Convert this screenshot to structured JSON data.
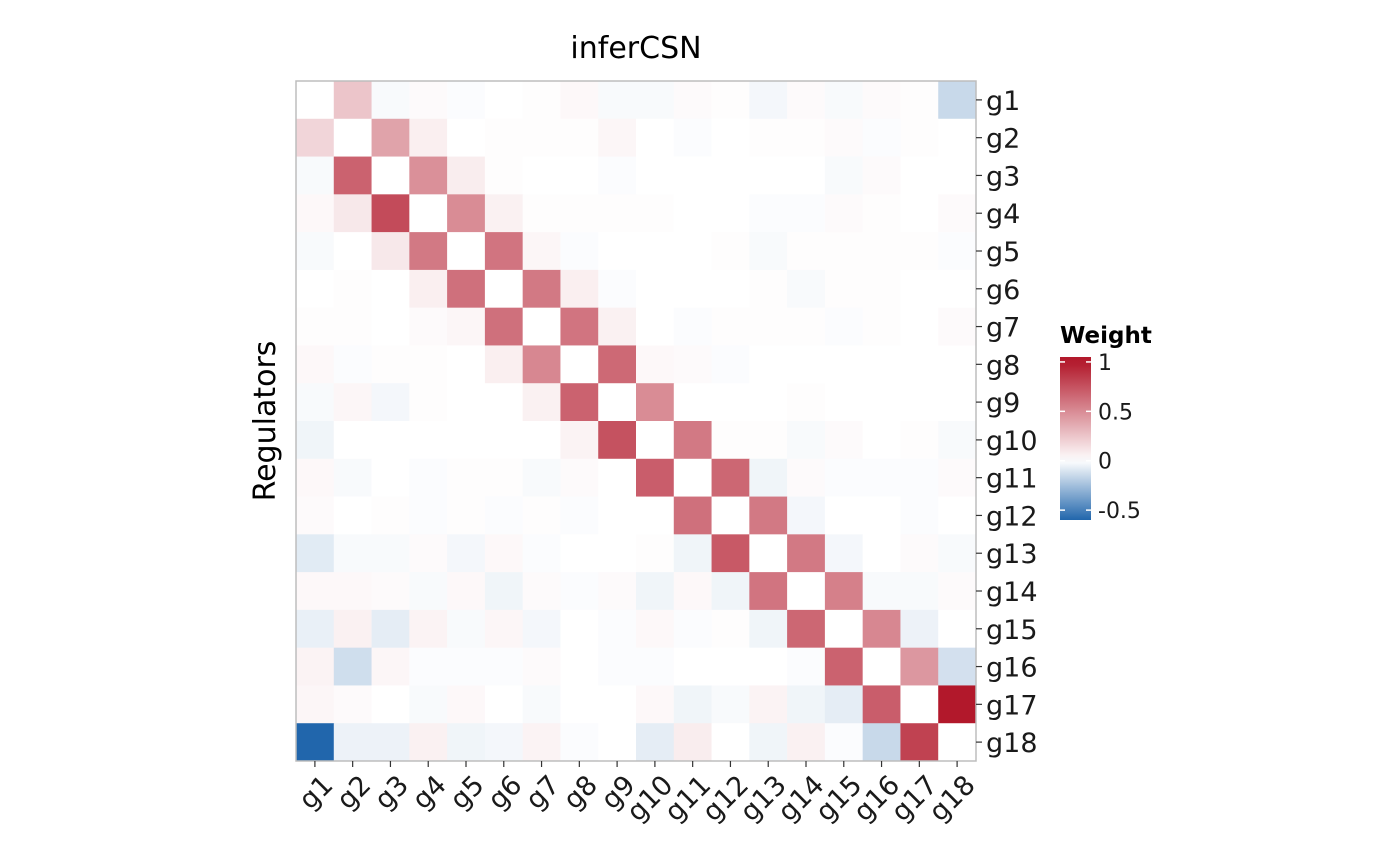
{
  "chart_data": {
    "type": "heatmap",
    "title": "inferCSN",
    "ylabel": "Regulators",
    "xlabel": "",
    "x_labels": [
      "g1",
      "g2",
      "g3",
      "g4",
      "g5",
      "g6",
      "g7",
      "g8",
      "g9",
      "g10",
      "g11",
      "g12",
      "g13",
      "g14",
      "g15",
      "g16",
      "g17",
      "g18"
    ],
    "y_labels": [
      "g1",
      "g2",
      "g3",
      "g4",
      "g5",
      "g6",
      "g7",
      "g8",
      "g9",
      "g10",
      "g11",
      "g12",
      "g13",
      "g14",
      "g15",
      "g16",
      "g17",
      "g18"
    ],
    "legend": {
      "title": "Weight",
      "ticks": [
        1,
        0.5,
        0,
        -0.5
      ],
      "tick_labels": [
        "1",
        "0.5",
        "0",
        "-0.5"
      ],
      "range": [
        -0.6,
        1.05
      ],
      "placement": "right"
    },
    "colors": {
      "high": "#b2182b",
      "mid": "#ffffff",
      "low": "#2166ac",
      "panel_border": "#bdbdbd"
    },
    "values": [
      [
        0,
        0.25,
        -0.02,
        0.02,
        -0.01,
        0,
        0.01,
        0.03,
        -0.02,
        -0.02,
        0.02,
        0.01,
        -0.03,
        0.02,
        -0.02,
        0.02,
        0.01,
        -0.15
      ],
      [
        0.18,
        0,
        0.4,
        0.07,
        0,
        0.01,
        0.01,
        0.01,
        0.04,
        0,
        -0.01,
        0,
        0.01,
        0.01,
        0.02,
        -0.01,
        0.01,
        0
      ],
      [
        -0.02,
        0.68,
        0,
        0.48,
        0.08,
        0.01,
        0,
        0,
        -0.01,
        0,
        0,
        0,
        0,
        0,
        -0.02,
        0.02,
        0,
        0
      ],
      [
        0.03,
        0.1,
        0.78,
        0,
        0.5,
        0.06,
        0.01,
        0.01,
        0.01,
        0.01,
        0,
        0,
        -0.01,
        -0.01,
        0.02,
        0.01,
        0,
        0.02
      ],
      [
        -0.02,
        0,
        0.1,
        0.58,
        0,
        0.6,
        0.04,
        -0.01,
        0,
        0,
        0,
        0.01,
        -0.02,
        0.01,
        0.01,
        0.01,
        0.01,
        -0.01
      ],
      [
        0,
        0.01,
        0,
        0.07,
        0.62,
        0,
        0.58,
        0.07,
        -0.01,
        0,
        0,
        0,
        0.01,
        -0.02,
        0.01,
        0.01,
        0,
        0
      ],
      [
        0.01,
        0.01,
        0,
        0.02,
        0.04,
        0.62,
        0,
        0.6,
        0.06,
        0,
        -0.01,
        0.01,
        0.01,
        0.01,
        -0.01,
        0.01,
        0,
        0.02
      ],
      [
        0.03,
        -0.01,
        0.01,
        0.01,
        0,
        0.07,
        0.52,
        0,
        0.65,
        0.03,
        0.02,
        -0.01,
        0,
        0,
        0,
        0,
        0,
        0
      ],
      [
        -0.02,
        0.04,
        -0.03,
        0.01,
        0,
        0,
        0.06,
        0.68,
        0,
        0.5,
        0,
        0,
        0,
        0.01,
        0,
        0,
        0,
        0
      ],
      [
        -0.04,
        0,
        0,
        0,
        0,
        0,
        0,
        0.05,
        0.75,
        0,
        0.58,
        0.01,
        0.01,
        -0.02,
        0.02,
        0,
        0.01,
        -0.02
      ],
      [
        0.03,
        -0.02,
        0,
        -0.01,
        0.01,
        0.01,
        -0.02,
        0.02,
        0,
        0.7,
        0,
        0.66,
        -0.04,
        0.02,
        -0.01,
        -0.01,
        -0.01,
        0.02
      ],
      [
        0.02,
        0,
        0.01,
        -0.01,
        0.01,
        -0.01,
        0.01,
        -0.01,
        0,
        0,
        0.62,
        0,
        0.58,
        -0.03,
        0,
        0,
        -0.01,
        0
      ],
      [
        -0.08,
        -0.02,
        -0.02,
        0.02,
        -0.03,
        0.03,
        -0.01,
        0,
        0,
        0.01,
        -0.04,
        0.72,
        0,
        0.58,
        -0.03,
        0,
        0.02,
        -0.02
      ],
      [
        0.03,
        0.03,
        0.02,
        -0.02,
        0.03,
        -0.04,
        0.02,
        -0.01,
        0.02,
        -0.04,
        0.03,
        -0.04,
        0.6,
        0,
        0.55,
        -0.02,
        -0.02,
        0.02
      ],
      [
        -0.06,
        0.06,
        -0.07,
        0.05,
        -0.02,
        0.04,
        -0.03,
        0,
        -0.01,
        0.03,
        -0.01,
        0.01,
        -0.04,
        0.66,
        0,
        0.52,
        -0.05,
        0
      ],
      [
        0.05,
        -0.13,
        0.04,
        -0.01,
        -0.01,
        -0.01,
        0.02,
        0,
        -0.01,
        -0.01,
        0,
        0,
        0,
        -0.01,
        0.68,
        0,
        0.45,
        -0.12
      ],
      [
        0.04,
        0.02,
        0,
        -0.02,
        0.03,
        0,
        -0.02,
        0,
        0,
        0.03,
        -0.04,
        -0.02,
        0.05,
        -0.04,
        -0.07,
        0.7,
        0,
        1
      ],
      [
        -0.6,
        -0.05,
        -0.05,
        0.06,
        -0.04,
        -0.03,
        0.05,
        -0.01,
        0,
        -0.07,
        0.08,
        0,
        -0.04,
        0.06,
        -0.01,
        -0.15,
        0.82,
        0
      ]
    ]
  }
}
